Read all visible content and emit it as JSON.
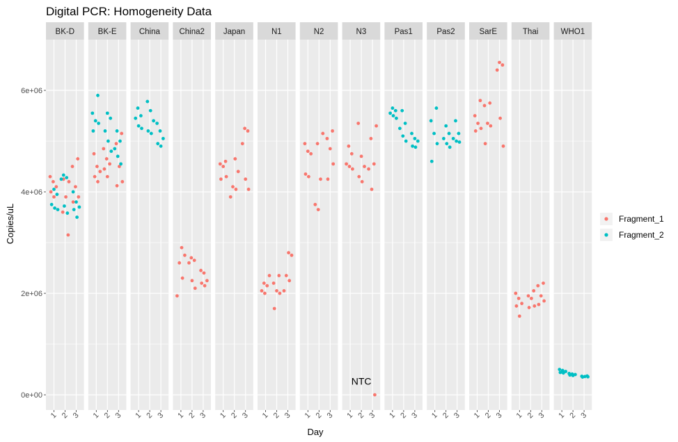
{
  "chart_data": {
    "type": "scatter",
    "title": "Digital PCR: Homogeneity Data",
    "xlabel": "Day",
    "ylabel": "Copies/uL",
    "x_categories": [
      "1",
      "2",
      "3"
    ],
    "y_ticks": [
      "0e+00",
      "2e+06",
      "4e+06",
      "6e+06"
    ],
    "ylim": [
      -300000,
      7000000
    ],
    "grid": true,
    "legend_position": "right",
    "colors": {
      "Fragment_1": "#F8766D",
      "Fragment_2": "#00BFC4",
      "panel_bg": "#EBEBEB",
      "strip_bg": "#D9D9D9",
      "grid": "#FFFFFF"
    },
    "series": [
      {
        "name": "Fragment_1"
      },
      {
        "name": "Fragment_2"
      }
    ],
    "facets": [
      {
        "label": "BK-D",
        "points": [
          [
            1,
            4300000,
            1
          ],
          [
            1,
            4200000,
            1
          ],
          [
            1,
            4100000,
            1
          ],
          [
            1,
            4000000,
            1
          ],
          [
            1,
            3900000,
            1
          ],
          [
            2,
            3150000,
            1
          ],
          [
            2,
            3600000,
            1
          ],
          [
            2,
            3900000,
            1
          ],
          [
            2,
            4200000,
            1
          ],
          [
            2,
            4250000,
            1
          ],
          [
            3,
            4650000,
            1
          ],
          [
            3,
            4500000,
            1
          ],
          [
            3,
            4100000,
            1
          ],
          [
            3,
            3900000,
            1
          ],
          [
            3,
            3800000,
            1
          ],
          [
            1,
            4050000,
            2
          ],
          [
            1,
            3950000,
            2
          ],
          [
            1,
            3750000,
            2
          ],
          [
            1,
            3680000,
            2
          ],
          [
            1,
            3650000,
            2
          ],
          [
            2,
            4330000,
            2
          ],
          [
            2,
            4280000,
            2
          ],
          [
            2,
            4250000,
            2
          ],
          [
            2,
            3720000,
            2
          ],
          [
            2,
            3580000,
            2
          ],
          [
            3,
            4000000,
            2
          ],
          [
            3,
            3800000,
            2
          ],
          [
            3,
            3700000,
            2
          ],
          [
            3,
            3650000,
            2
          ],
          [
            3,
            3500000,
            2
          ]
        ]
      },
      {
        "label": "BK-E",
        "points": [
          [
            1,
            4750000,
            1
          ],
          [
            1,
            4500000,
            1
          ],
          [
            1,
            4400000,
            1
          ],
          [
            1,
            4300000,
            1
          ],
          [
            1,
            4200000,
            1
          ],
          [
            2,
            4850000,
            1
          ],
          [
            2,
            4650000,
            1
          ],
          [
            2,
            4550000,
            1
          ],
          [
            2,
            4450000,
            1
          ],
          [
            2,
            4300000,
            1
          ],
          [
            3,
            5150000,
            1
          ],
          [
            3,
            4950000,
            1
          ],
          [
            3,
            4500000,
            1
          ],
          [
            3,
            4200000,
            1
          ],
          [
            3,
            4120000,
            1
          ],
          [
            1,
            5900000,
            2
          ],
          [
            1,
            5550000,
            2
          ],
          [
            1,
            5400000,
            2
          ],
          [
            1,
            5350000,
            2
          ],
          [
            1,
            5200000,
            2
          ],
          [
            2,
            5550000,
            2
          ],
          [
            2,
            5450000,
            2
          ],
          [
            2,
            5200000,
            2
          ],
          [
            2,
            5000000,
            2
          ],
          [
            2,
            4800000,
            2
          ],
          [
            3,
            5200000,
            2
          ],
          [
            3,
            5000000,
            2
          ],
          [
            3,
            4850000,
            2
          ],
          [
            3,
            4700000,
            2
          ],
          [
            3,
            4550000,
            2
          ]
        ]
      },
      {
        "label": "China",
        "points": [
          [
            1,
            5650000,
            2
          ],
          [
            1,
            5500000,
            2
          ],
          [
            1,
            5450000,
            2
          ],
          [
            1,
            5300000,
            2
          ],
          [
            1,
            5250000,
            2
          ],
          [
            2,
            5780000,
            2
          ],
          [
            2,
            5600000,
            2
          ],
          [
            2,
            5400000,
            2
          ],
          [
            2,
            5200000,
            2
          ],
          [
            2,
            5150000,
            2
          ],
          [
            3,
            5350000,
            2
          ],
          [
            3,
            5200000,
            2
          ],
          [
            3,
            5050000,
            2
          ],
          [
            3,
            4950000,
            2
          ],
          [
            3,
            4900000,
            2
          ]
        ]
      },
      {
        "label": "China2",
        "points": [
          [
            1,
            2900000,
            1
          ],
          [
            1,
            2750000,
            1
          ],
          [
            1,
            2600000,
            1
          ],
          [
            1,
            2300000,
            1
          ],
          [
            1,
            1950000,
            1
          ],
          [
            2,
            2700000,
            1
          ],
          [
            2,
            2650000,
            1
          ],
          [
            2,
            2600000,
            1
          ],
          [
            2,
            2250000,
            1
          ],
          [
            2,
            2100000,
            1
          ],
          [
            3,
            2450000,
            1
          ],
          [
            3,
            2400000,
            1
          ],
          [
            3,
            2250000,
            1
          ],
          [
            3,
            2200000,
            1
          ],
          [
            3,
            2150000,
            1
          ]
        ]
      },
      {
        "label": "Japan",
        "points": [
          [
            1,
            4600000,
            1
          ],
          [
            1,
            4550000,
            1
          ],
          [
            1,
            4500000,
            1
          ],
          [
            1,
            4300000,
            1
          ],
          [
            1,
            4250000,
            1
          ],
          [
            2,
            4650000,
            1
          ],
          [
            2,
            4400000,
            1
          ],
          [
            2,
            4100000,
            1
          ],
          [
            2,
            4050000,
            1
          ],
          [
            2,
            3900000,
            1
          ],
          [
            3,
            5250000,
            1
          ],
          [
            3,
            5200000,
            1
          ],
          [
            3,
            4950000,
            1
          ],
          [
            3,
            4250000,
            1
          ],
          [
            3,
            4050000,
            1
          ]
        ]
      },
      {
        "label": "N1",
        "points": [
          [
            1,
            2350000,
            1
          ],
          [
            1,
            2200000,
            1
          ],
          [
            1,
            2150000,
            1
          ],
          [
            1,
            2050000,
            1
          ],
          [
            1,
            2000000,
            1
          ],
          [
            2,
            2350000,
            1
          ],
          [
            2,
            2200000,
            1
          ],
          [
            2,
            2050000,
            1
          ],
          [
            2,
            2000000,
            1
          ],
          [
            2,
            1700000,
            1
          ],
          [
            3,
            2800000,
            1
          ],
          [
            3,
            2750000,
            1
          ],
          [
            3,
            2350000,
            1
          ],
          [
            3,
            2250000,
            1
          ],
          [
            3,
            2050000,
            1
          ]
        ]
      },
      {
        "label": "N2",
        "points": [
          [
            1,
            4950000,
            1
          ],
          [
            1,
            4800000,
            1
          ],
          [
            1,
            4750000,
            1
          ],
          [
            1,
            4350000,
            1
          ],
          [
            1,
            4300000,
            1
          ],
          [
            2,
            5150000,
            1
          ],
          [
            2,
            4950000,
            1
          ],
          [
            2,
            4250000,
            1
          ],
          [
            2,
            3750000,
            1
          ],
          [
            2,
            3650000,
            1
          ],
          [
            3,
            5200000,
            1
          ],
          [
            3,
            5050000,
            1
          ],
          [
            3,
            4850000,
            1
          ],
          [
            3,
            4550000,
            1
          ],
          [
            3,
            4250000,
            1
          ]
        ]
      },
      {
        "label": "N3",
        "points": [
          [
            1,
            4900000,
            1
          ],
          [
            1,
            4750000,
            1
          ],
          [
            1,
            4550000,
            1
          ],
          [
            1,
            4500000,
            1
          ],
          [
            1,
            4450000,
            1
          ],
          [
            2,
            5350000,
            1
          ],
          [
            2,
            4700000,
            1
          ],
          [
            2,
            4500000,
            1
          ],
          [
            2,
            4300000,
            1
          ],
          [
            2,
            4200000,
            1
          ],
          [
            3,
            5300000,
            1
          ],
          [
            3,
            5050000,
            1
          ],
          [
            3,
            4550000,
            1
          ],
          [
            3,
            4450000,
            1
          ],
          [
            3,
            4050000,
            1
          ],
          [
            3,
            0,
            1
          ]
        ],
        "annotation": {
          "text": "NTC",
          "x": 2,
          "y": 200000
        }
      },
      {
        "label": "Pas1",
        "points": [
          [
            1,
            5650000,
            2
          ],
          [
            1,
            5600000,
            2
          ],
          [
            1,
            5550000,
            2
          ],
          [
            1,
            5500000,
            2
          ],
          [
            1,
            5450000,
            2
          ],
          [
            2,
            5600000,
            2
          ],
          [
            2,
            5350000,
            2
          ],
          [
            2,
            5250000,
            2
          ],
          [
            2,
            5100000,
            2
          ],
          [
            2,
            5000000,
            2
          ],
          [
            3,
            5150000,
            2
          ],
          [
            3,
            5050000,
            2
          ],
          [
            3,
            5000000,
            2
          ],
          [
            3,
            4900000,
            2
          ],
          [
            3,
            4880000,
            2
          ]
        ]
      },
      {
        "label": "Pas2",
        "points": [
          [
            1,
            5650000,
            2
          ],
          [
            1,
            5400000,
            2
          ],
          [
            1,
            5150000,
            2
          ],
          [
            1,
            4950000,
            2
          ],
          [
            1,
            4600000,
            2
          ],
          [
            2,
            5300000,
            2
          ],
          [
            2,
            5150000,
            2
          ],
          [
            2,
            5050000,
            2
          ],
          [
            2,
            4950000,
            2
          ],
          [
            2,
            4880000,
            2
          ],
          [
            3,
            5400000,
            2
          ],
          [
            3,
            5150000,
            2
          ],
          [
            3,
            5050000,
            2
          ],
          [
            3,
            5000000,
            2
          ],
          [
            3,
            4980000,
            2
          ]
        ]
      },
      {
        "label": "SarE",
        "points": [
          [
            1,
            5800000,
            1
          ],
          [
            1,
            5500000,
            1
          ],
          [
            1,
            5350000,
            1
          ],
          [
            1,
            5250000,
            1
          ],
          [
            1,
            5200000,
            1
          ],
          [
            2,
            5750000,
            1
          ],
          [
            2,
            5700000,
            1
          ],
          [
            2,
            5350000,
            1
          ],
          [
            2,
            5300000,
            1
          ],
          [
            2,
            4950000,
            1
          ],
          [
            3,
            6550000,
            1
          ],
          [
            3,
            6500000,
            1
          ],
          [
            3,
            6400000,
            1
          ],
          [
            3,
            5450000,
            1
          ],
          [
            3,
            4900000,
            1
          ]
        ]
      },
      {
        "label": "Thai",
        "points": [
          [
            1,
            2000000,
            1
          ],
          [
            1,
            1900000,
            1
          ],
          [
            1,
            1800000,
            1
          ],
          [
            1,
            1750000,
            1
          ],
          [
            1,
            1550000,
            1
          ],
          [
            2,
            2050000,
            1
          ],
          [
            2,
            1950000,
            1
          ],
          [
            2,
            1900000,
            1
          ],
          [
            2,
            1750000,
            1
          ],
          [
            2,
            1720000,
            1
          ],
          [
            3,
            2200000,
            1
          ],
          [
            3,
            2150000,
            1
          ],
          [
            3,
            1950000,
            1
          ],
          [
            3,
            1850000,
            1
          ],
          [
            3,
            1780000,
            1
          ]
        ]
      },
      {
        "label": "WHO1",
        "points": [
          [
            1,
            500000,
            2
          ],
          [
            1,
            480000,
            2
          ],
          [
            1,
            460000,
            2
          ],
          [
            1,
            440000,
            2
          ],
          [
            1,
            430000,
            2
          ],
          [
            2,
            420000,
            2
          ],
          [
            2,
            410000,
            2
          ],
          [
            2,
            400000,
            2
          ],
          [
            2,
            390000,
            2
          ],
          [
            2,
            380000,
            2
          ],
          [
            3,
            370000,
            2
          ],
          [
            3,
            365000,
            2
          ],
          [
            3,
            360000,
            2
          ],
          [
            3,
            355000,
            2
          ],
          [
            3,
            350000,
            2
          ]
        ]
      }
    ]
  }
}
